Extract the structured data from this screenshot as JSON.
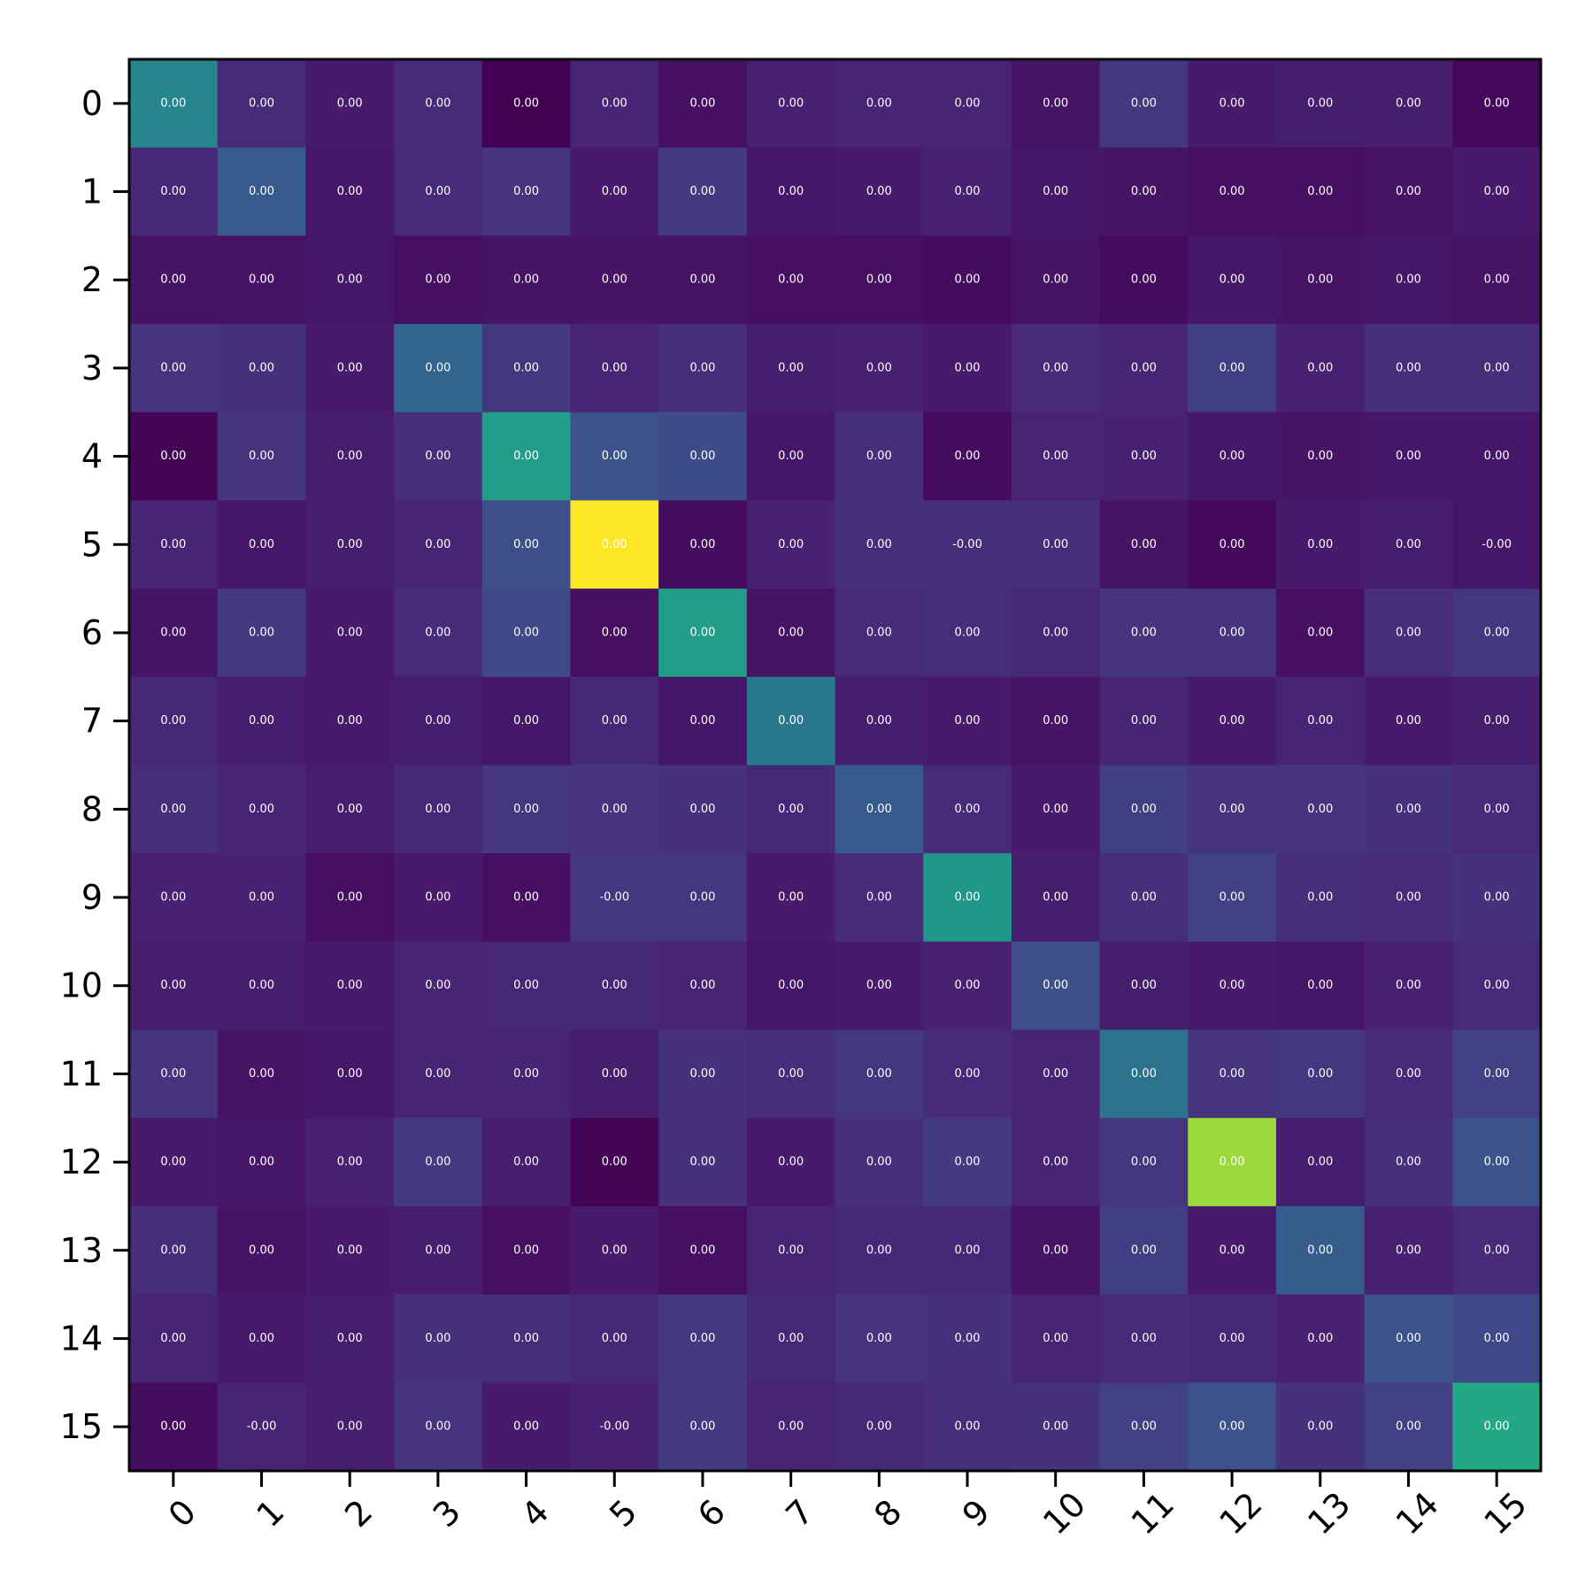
{
  "chart_data": {
    "type": "heatmap",
    "title": "",
    "xlabel": "",
    "ylabel": "",
    "x_categories": [
      "0",
      "1",
      "2",
      "3",
      "4",
      "5",
      "6",
      "7",
      "8",
      "9",
      "10",
      "11",
      "12",
      "13",
      "14",
      "15"
    ],
    "y_categories": [
      "0",
      "1",
      "2",
      "3",
      "4",
      "5",
      "6",
      "7",
      "8",
      "9",
      "10",
      "11",
      "12",
      "13",
      "14",
      "15"
    ],
    "colormap": "viridis",
    "value_range": [
      0,
      1
    ],
    "grid": false,
    "legend": "none",
    "cell_labels": [
      [
        "0.00",
        "0.00",
        "0.00",
        "0.00",
        "0.00",
        "0.00",
        "0.00",
        "0.00",
        "0.00",
        "0.00",
        "0.00",
        "0.00",
        "0.00",
        "0.00",
        "0.00",
        "0.00"
      ],
      [
        "0.00",
        "0.00",
        "0.00",
        "0.00",
        "0.00",
        "0.00",
        "0.00",
        "0.00",
        "0.00",
        "0.00",
        "0.00",
        "0.00",
        "0.00",
        "0.00",
        "0.00",
        "0.00"
      ],
      [
        "0.00",
        "0.00",
        "0.00",
        "0.00",
        "0.00",
        "0.00",
        "0.00",
        "0.00",
        "0.00",
        "0.00",
        "0.00",
        "0.00",
        "0.00",
        "0.00",
        "0.00",
        "0.00"
      ],
      [
        "0.00",
        "0.00",
        "0.00",
        "0.00",
        "0.00",
        "0.00",
        "0.00",
        "0.00",
        "0.00",
        "0.00",
        "0.00",
        "0.00",
        "0.00",
        "0.00",
        "0.00",
        "0.00"
      ],
      [
        "0.00",
        "0.00",
        "0.00",
        "0.00",
        "0.00",
        "0.00",
        "0.00",
        "0.00",
        "0.00",
        "0.00",
        "0.00",
        "0.00",
        "0.00",
        "0.00",
        "0.00",
        "0.00"
      ],
      [
        "0.00",
        "0.00",
        "0.00",
        "0.00",
        "0.00",
        "0.00",
        "0.00",
        "0.00",
        "0.00",
        "-0.00",
        "0.00",
        "0.00",
        "0.00",
        "0.00",
        "0.00",
        "-0.00"
      ],
      [
        "0.00",
        "0.00",
        "0.00",
        "0.00",
        "0.00",
        "0.00",
        "0.00",
        "0.00",
        "0.00",
        "0.00",
        "0.00",
        "0.00",
        "0.00",
        "0.00",
        "0.00",
        "0.00"
      ],
      [
        "0.00",
        "0.00",
        "0.00",
        "0.00",
        "0.00",
        "0.00",
        "0.00",
        "0.00",
        "0.00",
        "0.00",
        "0.00",
        "0.00",
        "0.00",
        "0.00",
        "0.00",
        "0.00"
      ],
      [
        "0.00",
        "0.00",
        "0.00",
        "0.00",
        "0.00",
        "0.00",
        "0.00",
        "0.00",
        "0.00",
        "0.00",
        "0.00",
        "0.00",
        "0.00",
        "0.00",
        "0.00",
        "0.00"
      ],
      [
        "0.00",
        "0.00",
        "0.00",
        "0.00",
        "0.00",
        "-0.00",
        "0.00",
        "0.00",
        "0.00",
        "0.00",
        "0.00",
        "0.00",
        "0.00",
        "0.00",
        "0.00",
        "0.00"
      ],
      [
        "0.00",
        "0.00",
        "0.00",
        "0.00",
        "0.00",
        "0.00",
        "0.00",
        "0.00",
        "0.00",
        "0.00",
        "0.00",
        "0.00",
        "0.00",
        "0.00",
        "0.00",
        "0.00"
      ],
      [
        "0.00",
        "0.00",
        "0.00",
        "0.00",
        "0.00",
        "0.00",
        "0.00",
        "0.00",
        "0.00",
        "0.00",
        "0.00",
        "0.00",
        "0.00",
        "0.00",
        "0.00",
        "0.00"
      ],
      [
        "0.00",
        "0.00",
        "0.00",
        "0.00",
        "0.00",
        "0.00",
        "0.00",
        "0.00",
        "0.00",
        "0.00",
        "0.00",
        "0.00",
        "0.00",
        "0.00",
        "0.00",
        "0.00"
      ],
      [
        "0.00",
        "0.00",
        "0.00",
        "0.00",
        "0.00",
        "0.00",
        "0.00",
        "0.00",
        "0.00",
        "0.00",
        "0.00",
        "0.00",
        "0.00",
        "0.00",
        "0.00",
        "0.00"
      ],
      [
        "0.00",
        "0.00",
        "0.00",
        "0.00",
        "0.00",
        "0.00",
        "0.00",
        "0.00",
        "0.00",
        "0.00",
        "0.00",
        "0.00",
        "0.00",
        "0.00",
        "0.00",
        "0.00"
      ],
      [
        "0.00",
        "-0.00",
        "0.00",
        "0.00",
        "0.00",
        "-0.00",
        "0.00",
        "0.00",
        "0.00",
        "0.00",
        "0.00",
        "0.00",
        "0.00",
        "0.00",
        "0.00",
        "0.00"
      ]
    ],
    "color_values": [
      [
        0.45,
        0.12,
        0.07,
        0.12,
        0.0,
        0.1,
        0.04,
        0.09,
        0.1,
        0.1,
        0.05,
        0.16,
        0.07,
        0.08,
        0.08,
        0.02
      ],
      [
        0.11,
        0.28,
        0.06,
        0.12,
        0.15,
        0.07,
        0.17,
        0.06,
        0.07,
        0.09,
        0.06,
        0.05,
        0.04,
        0.04,
        0.05,
        0.07
      ],
      [
        0.05,
        0.05,
        0.06,
        0.04,
        0.05,
        0.05,
        0.05,
        0.04,
        0.04,
        0.03,
        0.05,
        0.03,
        0.06,
        0.05,
        0.06,
        0.05
      ],
      [
        0.15,
        0.14,
        0.07,
        0.32,
        0.16,
        0.1,
        0.13,
        0.08,
        0.09,
        0.07,
        0.12,
        0.1,
        0.18,
        0.09,
        0.13,
        0.13
      ],
      [
        0.01,
        0.15,
        0.08,
        0.13,
        0.55,
        0.25,
        0.23,
        0.06,
        0.13,
        0.03,
        0.1,
        0.09,
        0.06,
        0.05,
        0.06,
        0.06
      ],
      [
        0.1,
        0.06,
        0.08,
        0.1,
        0.24,
        1.0,
        0.03,
        0.09,
        0.13,
        0.13,
        0.13,
        0.05,
        0.02,
        0.07,
        0.08,
        0.06
      ],
      [
        0.05,
        0.17,
        0.07,
        0.12,
        0.22,
        0.04,
        0.55,
        0.05,
        0.12,
        0.13,
        0.11,
        0.15,
        0.15,
        0.04,
        0.13,
        0.16
      ],
      [
        0.11,
        0.08,
        0.07,
        0.08,
        0.06,
        0.11,
        0.06,
        0.4,
        0.08,
        0.07,
        0.05,
        0.1,
        0.07,
        0.1,
        0.07,
        0.08
      ],
      [
        0.13,
        0.1,
        0.08,
        0.11,
        0.16,
        0.15,
        0.14,
        0.11,
        0.28,
        0.12,
        0.07,
        0.18,
        0.15,
        0.15,
        0.14,
        0.12
      ],
      [
        0.09,
        0.09,
        0.04,
        0.07,
        0.04,
        0.16,
        0.16,
        0.07,
        0.12,
        0.52,
        0.08,
        0.13,
        0.19,
        0.13,
        0.12,
        0.14
      ],
      [
        0.08,
        0.08,
        0.07,
        0.1,
        0.11,
        0.11,
        0.1,
        0.06,
        0.07,
        0.09,
        0.24,
        0.08,
        0.07,
        0.06,
        0.09,
        0.12
      ],
      [
        0.15,
        0.05,
        0.06,
        0.1,
        0.1,
        0.08,
        0.14,
        0.13,
        0.16,
        0.12,
        0.1,
        0.38,
        0.15,
        0.16,
        0.12,
        0.19
      ],
      [
        0.07,
        0.06,
        0.09,
        0.17,
        0.08,
        0.01,
        0.14,
        0.07,
        0.13,
        0.17,
        0.1,
        0.16,
        0.85,
        0.08,
        0.13,
        0.25
      ],
      [
        0.13,
        0.05,
        0.07,
        0.08,
        0.04,
        0.07,
        0.04,
        0.1,
        0.11,
        0.11,
        0.05,
        0.18,
        0.07,
        0.29,
        0.09,
        0.12
      ],
      [
        0.1,
        0.07,
        0.08,
        0.14,
        0.13,
        0.11,
        0.16,
        0.11,
        0.15,
        0.14,
        0.1,
        0.12,
        0.11,
        0.09,
        0.26,
        0.22
      ],
      [
        0.03,
        0.1,
        0.08,
        0.15,
        0.07,
        0.09,
        0.17,
        0.1,
        0.11,
        0.13,
        0.14,
        0.19,
        0.25,
        0.14,
        0.19,
        0.6
      ]
    ]
  }
}
